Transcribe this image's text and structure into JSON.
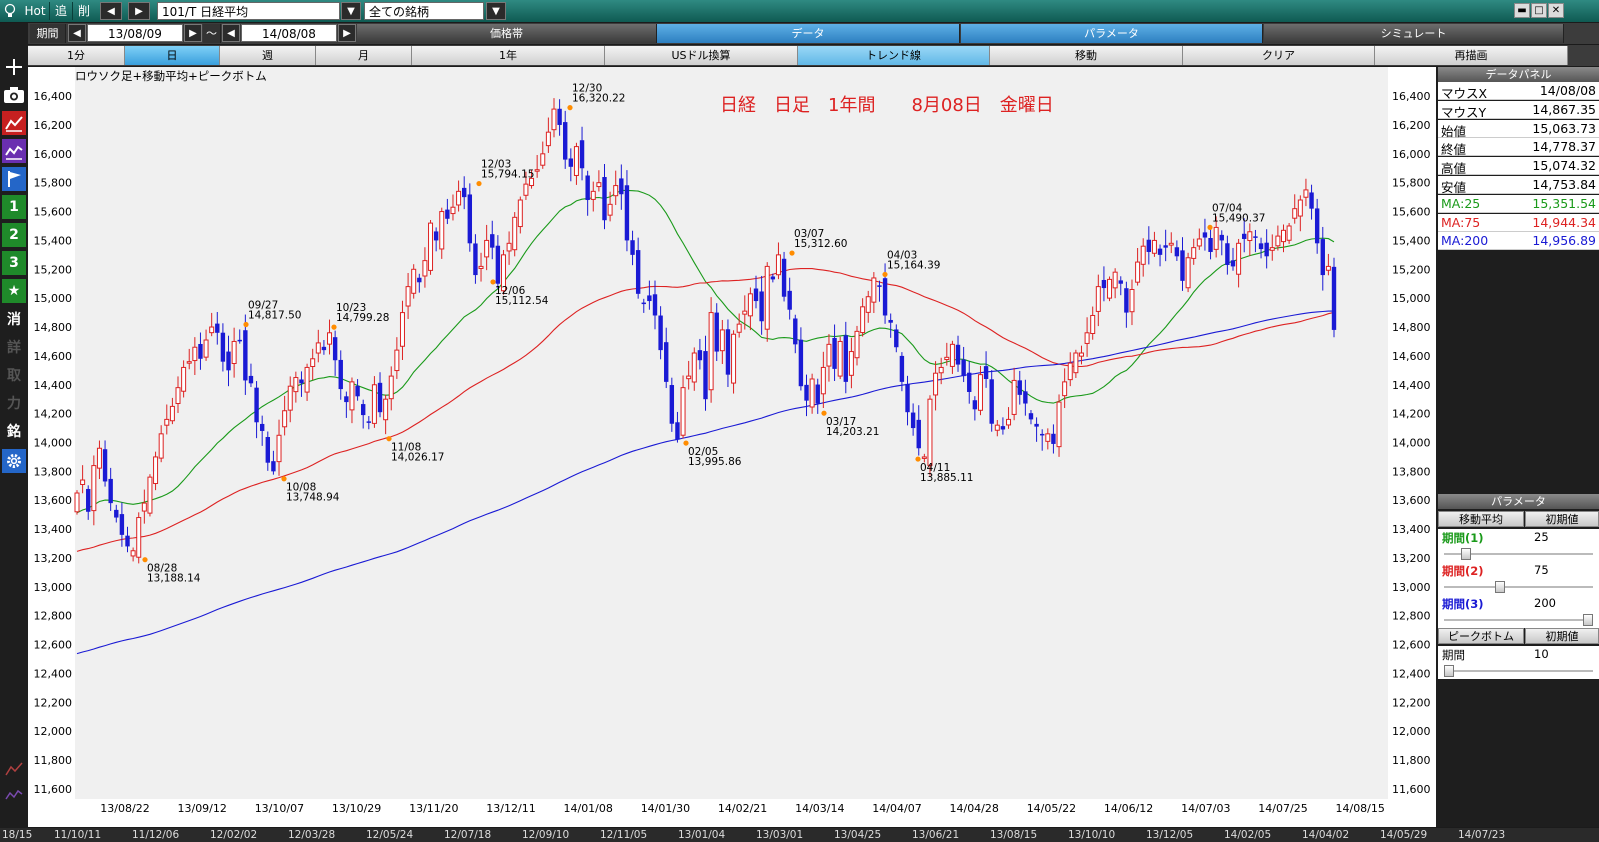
{
  "toolbar": {
    "hot_label": "Hot",
    "add_label": "追",
    "delete_label": "削",
    "prev_icon": "triangle-left-icon",
    "next_icon": "triangle-right-icon",
    "symbol_value": "101/T 日経平均",
    "group_value": "全ての銘柄"
  },
  "period_bar": {
    "label": "期間",
    "start_date": "13/08/09",
    "separator": "～",
    "end_date": "14/08/08",
    "tabs": [
      {
        "label": "価格帯",
        "active": false
      },
      {
        "label": "データ",
        "active": true
      },
      {
        "label": "パラメータ",
        "active": true
      },
      {
        "label": "シミュレート",
        "active": false
      }
    ]
  },
  "range_bar": {
    "tabs": [
      {
        "label": "1分",
        "active": false
      },
      {
        "label": "日",
        "active": true
      },
      {
        "label": "週",
        "active": false
      },
      {
        "label": "月",
        "active": false
      },
      {
        "label": "1年",
        "active": false
      },
      {
        "label": "USドル換算",
        "active": false
      },
      {
        "label": "トレンド線",
        "active": true
      },
      {
        "label": "移動",
        "active": false
      },
      {
        "label": "クリア",
        "active": false
      },
      {
        "label": "再描画",
        "active": false
      }
    ]
  },
  "left_tools": [
    {
      "name": "search-icon",
      "label": ""
    },
    {
      "name": "plus-icon",
      "label": ""
    },
    {
      "name": "camera-icon",
      "label": ""
    },
    {
      "name": "chart-red-icon",
      "label": ""
    },
    {
      "name": "chart-purple-icon",
      "label": ""
    },
    {
      "name": "flag-icon",
      "label": ""
    },
    {
      "name": "slot-1-button",
      "label": "1"
    },
    {
      "name": "slot-2-button",
      "label": "2"
    },
    {
      "name": "slot-3-button",
      "label": "3"
    },
    {
      "name": "star-icon",
      "label": ""
    },
    {
      "name": "erase-button",
      "label": "消"
    },
    {
      "name": "detail-button",
      "label": "詳"
    },
    {
      "name": "fetch-button",
      "label": "取"
    },
    {
      "name": "power-button",
      "label": "力"
    },
    {
      "name": "stock-button",
      "label": "銘"
    },
    {
      "name": "gear-icon",
      "label": ""
    }
  ],
  "chart": {
    "subtitle": "ロウソク足+移動平均+ピークボトム",
    "title": "日経　日足　1年間　　8月08日　金曜日"
  },
  "chart_data": {
    "type": "candlestick",
    "y_ticks": [
      11600,
      11800,
      12000,
      12200,
      12400,
      12600,
      12800,
      13000,
      13200,
      13400,
      13600,
      13800,
      14000,
      14200,
      14400,
      14600,
      14800,
      15000,
      15200,
      15400,
      15600,
      15800,
      16000,
      16200,
      16400
    ],
    "ylim": [
      11530,
      16560
    ],
    "x_ticks": [
      "13/08/22",
      "13/09/12",
      "13/10/07",
      "13/10/29",
      "13/11/20",
      "13/12/11",
      "14/01/08",
      "14/01/30",
      "14/02/21",
      "14/03/14",
      "14/04/07",
      "14/04/28",
      "14/05/22",
      "14/06/12",
      "14/07/03",
      "14/07/25",
      "14/08/15"
    ],
    "closes": [
      13650,
      13740,
      13520,
      13840,
      13960,
      13730,
      13580,
      13480,
      13360,
      13280,
      13250,
      13480,
      13580,
      13760,
      13900,
      14060,
      14160,
      14250,
      14380,
      14520,
      14560,
      14660,
      14580,
      14710,
      14800,
      14760,
      14560,
      14500,
      14700,
      14710,
      14430,
      14410,
      14140,
      14080,
      13860,
      13800,
      14050,
      14220,
      14390,
      14450,
      14410,
      14520,
      14580,
      14690,
      14640,
      14760,
      14570,
      14370,
      14280,
      14420,
      14320,
      14190,
      14140,
      14400,
      14210,
      14300,
      14460,
      14640,
      14900,
      15080,
      15200,
      15110,
      15260,
      15520,
      15400,
      15600,
      15550,
      15630,
      15740,
      15700,
      15380,
      15160,
      15220,
      15400,
      15350,
      15100,
      15300,
      15380,
      15560,
      15680,
      15790,
      15830,
      15890,
      16000,
      16150,
      16310,
      16200,
      15960,
      15910,
      16050,
      15900,
      15680,
      15740,
      15800,
      15540,
      15650,
      15780,
      15720,
      15400,
      15300,
      15030,
      14960,
      14980,
      14880,
      14640,
      14420,
      14130,
      14020,
      14380,
      14460,
      14620,
      14570,
      14300,
      14900,
      14630,
      14780,
      14470,
      14750,
      14820,
      14910,
      15030,
      14980,
      14840,
      15220,
      15130,
      15300,
      15010,
      14920,
      14680,
      14390,
      14290,
      14440,
      14270,
      14520,
      14680,
      14510,
      14700,
      14420,
      14630,
      14770,
      14940,
      15010,
      15140,
      15080,
      14880,
      14830,
      14660,
      14420,
      14210,
      14100,
      13960,
      13900,
      14300,
      14480,
      14520,
      14590,
      14680,
      14540,
      14460,
      14350,
      14230,
      14470,
      14440,
      14130,
      14120,
      14090,
      14160,
      14430,
      14330,
      14270,
      14160,
      14110,
      14050,
      14060,
      13990,
      14280,
      14420,
      14550,
      14620,
      14620,
      14760,
      14880,
      15080,
      15070,
      15130,
      15180,
      15100,
      14900,
      15060,
      15250,
      15360,
      15320,
      15400,
      15300,
      15350,
      15380,
      15290,
      15120,
      15280,
      15350,
      15410,
      15420,
      15320,
      15490,
      15400,
      15230,
      15220,
      15380,
      15410,
      15460,
      15420,
      15340,
      15290,
      15350,
      15430,
      15470,
      15500,
      15620,
      15680,
      15750,
      15620,
      15380,
      15160,
      15220,
      14780
    ],
    "peaks": [
      {
        "date": "08/28",
        "value": "13,188.14",
        "kind": "bottom"
      },
      {
        "date": "09/27",
        "value": "14,817.50",
        "kind": "peak"
      },
      {
        "date": "10/08",
        "value": "13,748.94",
        "kind": "bottom"
      },
      {
        "date": "10/23",
        "value": "14,799.28",
        "kind": "peak"
      },
      {
        "date": "11/08",
        "value": "14,026.17",
        "kind": "bottom"
      },
      {
        "date": "12/03",
        "value": "15,794.15",
        "kind": "peak"
      },
      {
        "date": "12/06",
        "value": "15,112.54",
        "kind": "bottom"
      },
      {
        "date": "12/30",
        "value": "16,320.22",
        "kind": "peak"
      },
      {
        "date": "02/05",
        "value": "13,995.86",
        "kind": "bottom"
      },
      {
        "date": "03/07",
        "value": "15,312.60",
        "kind": "peak"
      },
      {
        "date": "03/17",
        "value": "14,203.21",
        "kind": "bottom"
      },
      {
        "date": "04/03",
        "value": "15,164.39",
        "kind": "peak"
      },
      {
        "date": "04/11",
        "value": "13,885.11",
        "kind": "bottom"
      },
      {
        "date": "07/04",
        "value": "15,490.37",
        "kind": "peak"
      }
    ],
    "ma_series": [
      {
        "name": "MA:25",
        "color": "#1a9a1a"
      },
      {
        "name": "MA:75",
        "color": "#dd2222"
      },
      {
        "name": "MA:200",
        "color": "#1a1ad4"
      }
    ],
    "up_color": "#dd2222",
    "down_color": "#1a1ad4",
    "grid": false
  },
  "data_panel": {
    "title": "データパネル",
    "rows": [
      {
        "key": "マウスX",
        "value": "14/08/08",
        "color": "#000000"
      },
      {
        "key": "マウスY",
        "value": "14,867.35",
        "color": "#000000"
      },
      {
        "key": "始値",
        "value": "15,063.73",
        "color": "#000000"
      },
      {
        "key": "終値",
        "value": "14,778.37",
        "color": "#000000"
      },
      {
        "key": "高値",
        "value": "15,074.32",
        "color": "#000000"
      },
      {
        "key": "安値",
        "value": "14,753.84",
        "color": "#000000"
      },
      {
        "key": "MA:25",
        "value": "15,351.54",
        "color": "#1a9a1a"
      },
      {
        "key": "MA:75",
        "value": "14,944.34",
        "color": "#dd2222"
      },
      {
        "key": "MA:200",
        "value": "14,956.89",
        "color": "#1a1ad4"
      }
    ]
  },
  "param_panel": {
    "title": "パラメータ",
    "ma_section": "移動平均",
    "reset_label": "初期値",
    "periods": [
      {
        "label": "期間(1)",
        "value": "25",
        "color": "#1a9a1a",
        "level": 0.12
      },
      {
        "label": "期間(2)",
        "value": "75",
        "color": "#dd2222",
        "level": 0.37
      },
      {
        "label": "期間(3)",
        "value": "200",
        "color": "#1a1ad4",
        "level": 1.0
      }
    ],
    "peak_section": "ピークボトム",
    "peak_reset_label": "初期値",
    "peak_period_label": "期間",
    "peak_period_value": "10",
    "peak_level": 0.0
  },
  "bottom_bar": {
    "labels": [
      "18/15",
      "11/10/11",
      "11/12/06",
      "12/02/02",
      "12/03/28",
      "12/05/24",
      "12/07/18",
      "12/09/10",
      "12/11/05",
      "13/01/04",
      "13/03/01",
      "13/04/25",
      "13/06/21",
      "13/08/15",
      "13/10/10",
      "13/12/05",
      "14/02/05",
      "14/04/02",
      "14/05/29",
      "14/07/23"
    ]
  }
}
